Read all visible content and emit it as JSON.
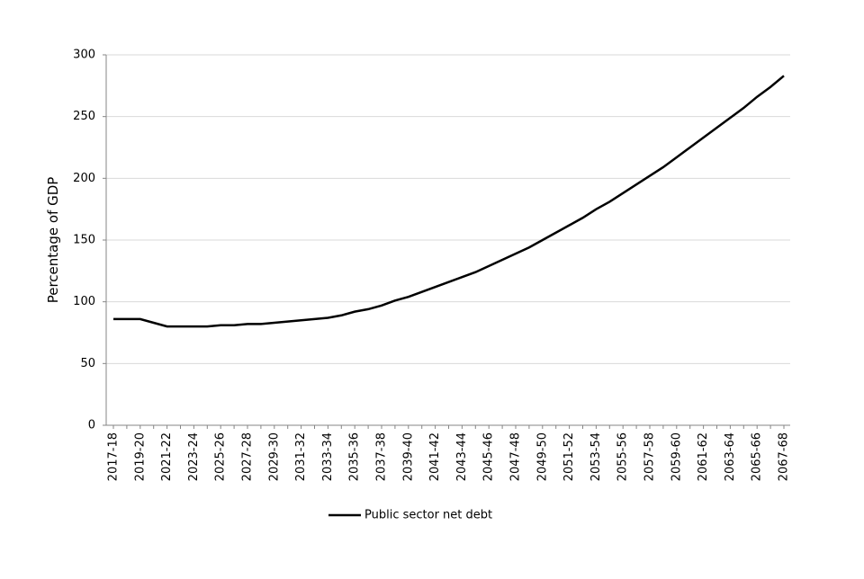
{
  "chart_data": {
    "type": "line",
    "y_label": "Percentage of GDP",
    "categories": [
      "2017-18",
      null,
      "2019-20",
      null,
      "2021-22",
      null,
      "2023-24",
      null,
      "2025-26",
      null,
      "2027-28",
      null,
      "2029-30",
      null,
      "2031-32",
      null,
      "2033-34",
      null,
      "2035-36",
      null,
      "2037-38",
      null,
      "2039-40",
      null,
      "2041-42",
      null,
      "2043-44",
      null,
      "2045-46",
      null,
      "2047-48",
      null,
      "2049-50",
      null,
      "2051-52",
      null,
      "2053-54",
      null,
      "2055-56",
      null,
      "2057-58",
      null,
      "2059-60",
      null,
      "2061-62",
      null,
      "2063-64",
      null,
      "2065-66",
      null,
      "2067-68"
    ],
    "series": [
      {
        "name": "Public sector net debt",
        "color": "#000000",
        "values": [
          86,
          86,
          86,
          83,
          80,
          80,
          80,
          80,
          81,
          81,
          82,
          82,
          83,
          84,
          85,
          86,
          87,
          89,
          92,
          94,
          97,
          101,
          104,
          108,
          112,
          116,
          120,
          124,
          129,
          134,
          139,
          144,
          150,
          156,
          162,
          168,
          175,
          181,
          188,
          195,
          202,
          209,
          217,
          225,
          233,
          241,
          249,
          257,
          266,
          274,
          283
        ]
      }
    ],
    "ylim": [
      0,
      300
    ],
    "yticks": [
      0,
      50,
      100,
      150,
      200,
      250,
      300
    ],
    "grid": true,
    "legend": "bottom"
  }
}
